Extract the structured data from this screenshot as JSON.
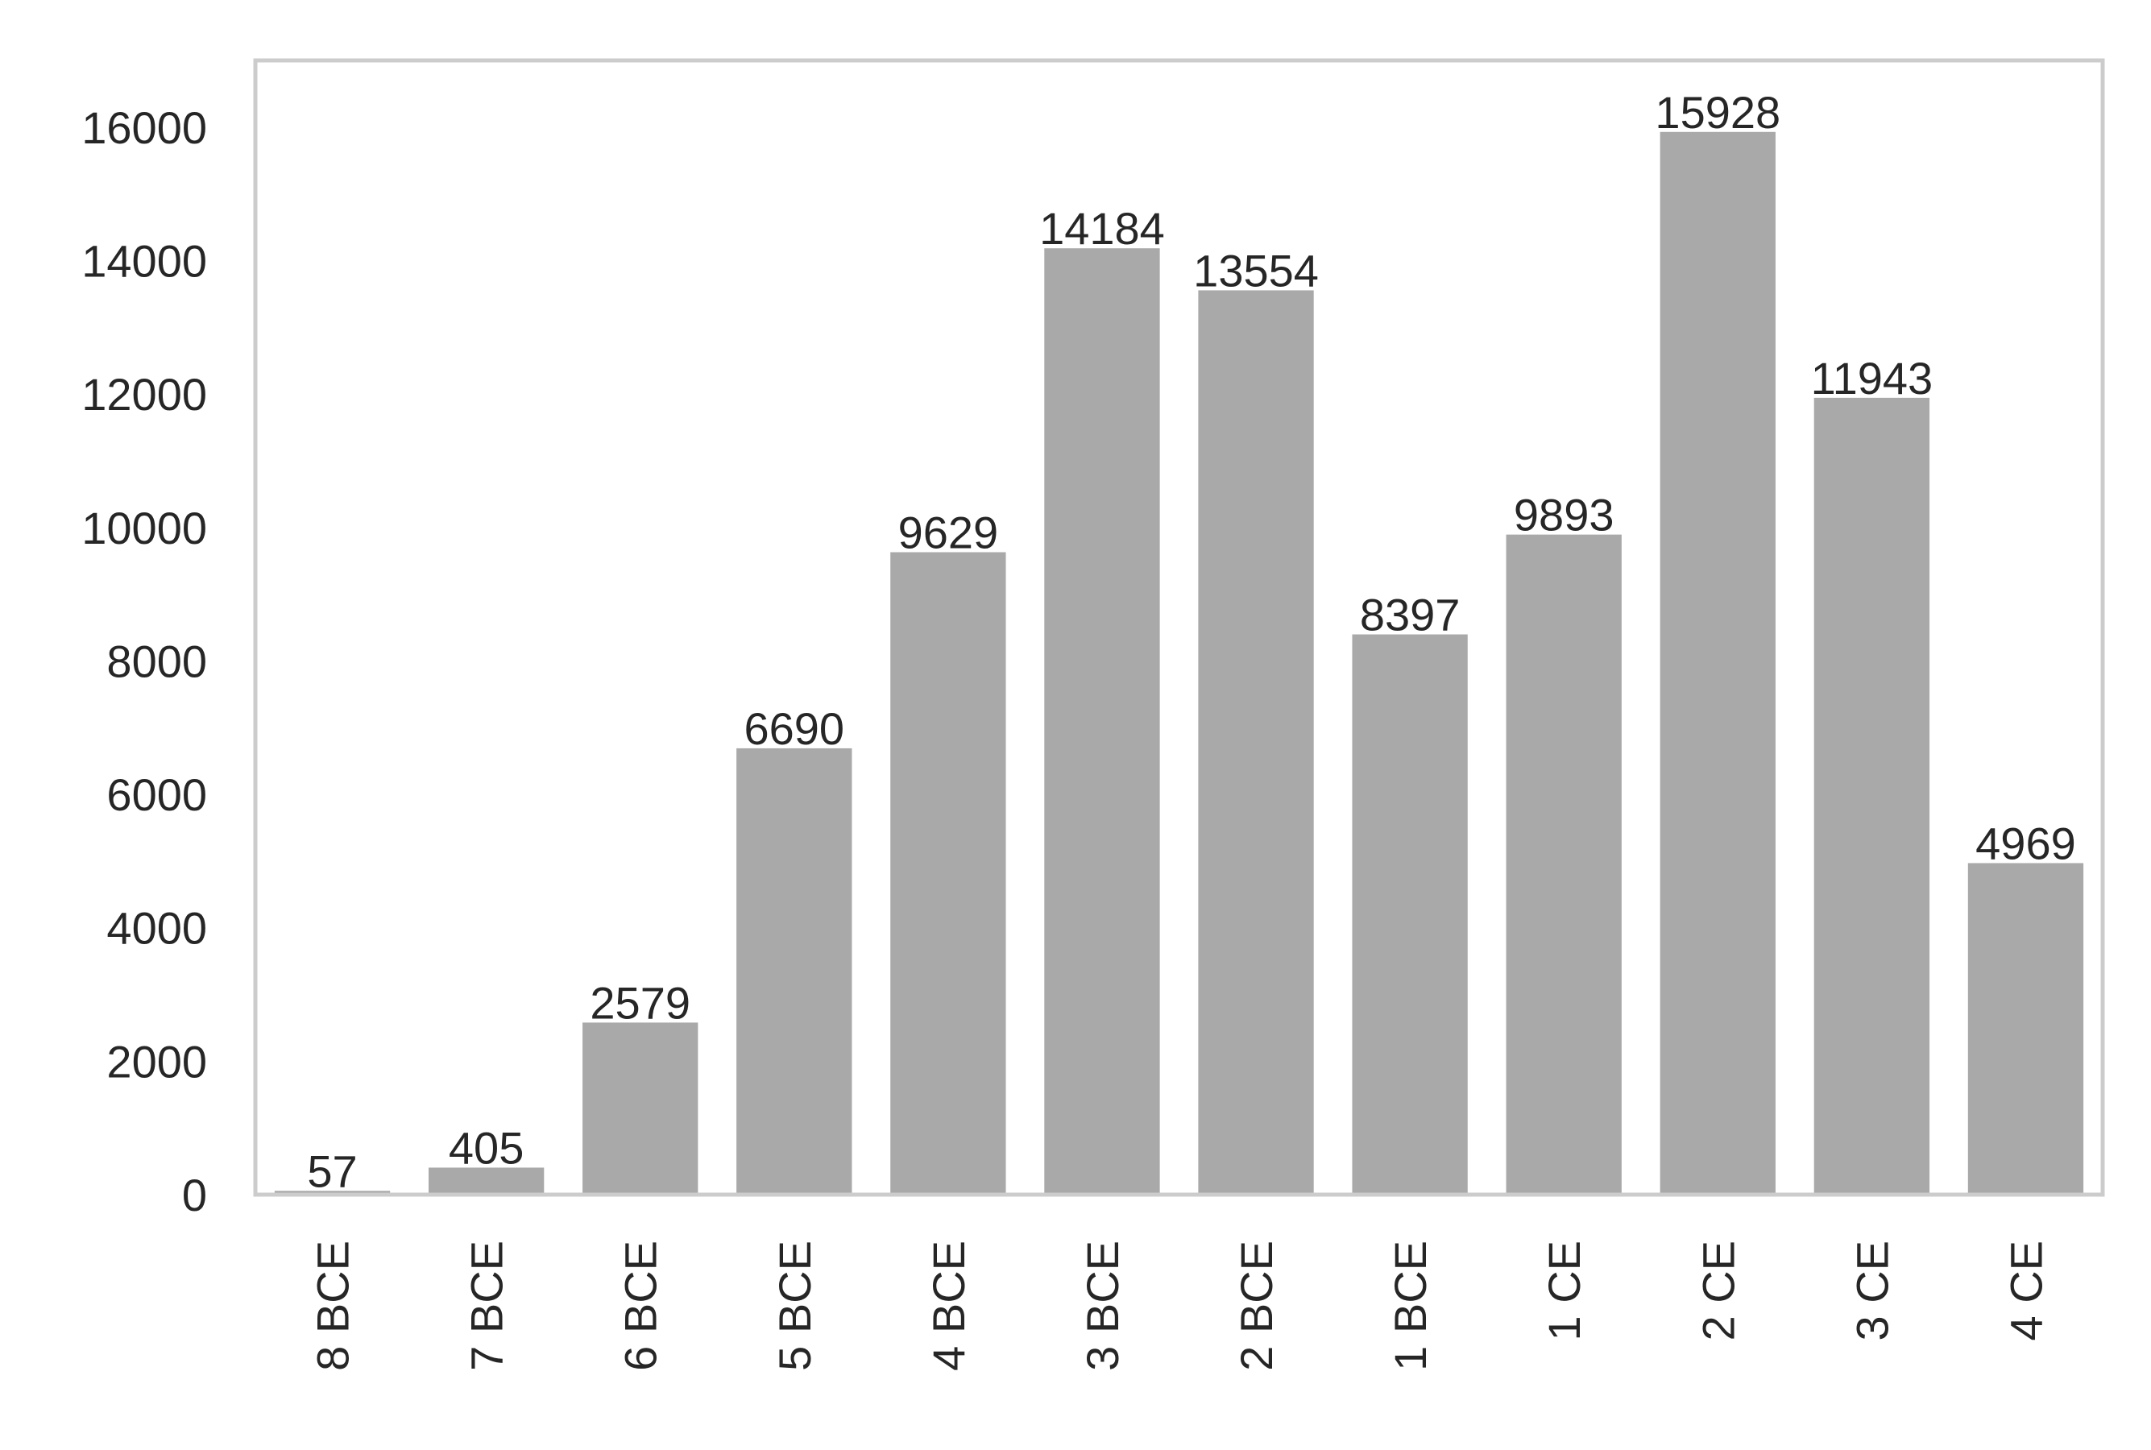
{
  "chart_data": {
    "type": "bar",
    "title": "",
    "xlabel": "",
    "ylabel": "",
    "categories": [
      "8 BCE",
      "7 BCE",
      "6 BCE",
      "5 BCE",
      "4 BCE",
      "3 BCE",
      "2 BCE",
      "1 BCE",
      "1 CE",
      "2 CE",
      "3 CE",
      "4 CE"
    ],
    "values": [
      57,
      405,
      2579,
      6690,
      9629,
      14184,
      13554,
      8397,
      9893,
      15928,
      11943,
      4969
    ],
    "ylim": [
      0,
      17000
    ],
    "yticks": [
      0,
      2000,
      4000,
      6000,
      8000,
      10000,
      12000,
      14000,
      16000
    ],
    "grid": false,
    "legend": false,
    "bar_color": "#a9a9a9",
    "frame_color": "#cccccc",
    "text_color": "#262626"
  }
}
